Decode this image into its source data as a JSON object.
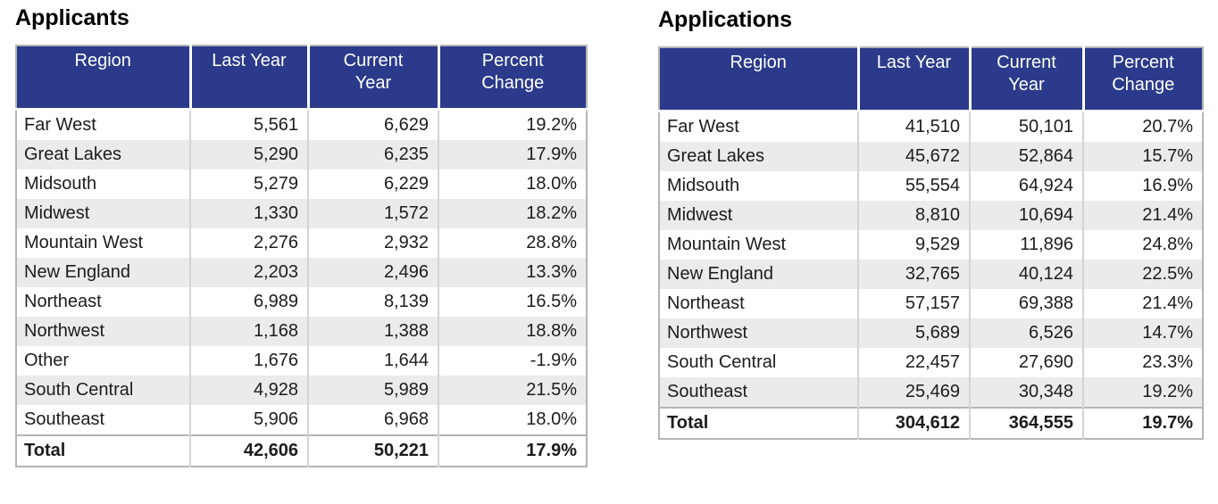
{
  "theme": {
    "header_bg": "#2b3a8a",
    "header_text": "#ffffff",
    "alt_row_bg": "#ebebeb",
    "outer_border": "#b5b5b5",
    "inner_border": "#d4d4d4",
    "body_text": "#1c1c1c"
  },
  "chart_data": [
    {
      "type": "table",
      "title": "Applicants",
      "columns": [
        "Region",
        "Last Year",
        "Current Year",
        "Percent Change"
      ],
      "rows": [
        [
          "Far West",
          "5,561",
          "6,629",
          "19.2%"
        ],
        [
          "Great Lakes",
          "5,290",
          "6,235",
          "17.9%"
        ],
        [
          "Midsouth",
          "5,279",
          "6,229",
          "18.0%"
        ],
        [
          "Midwest",
          "1,330",
          "1,572",
          "18.2%"
        ],
        [
          "Mountain West",
          "2,276",
          "2,932",
          "28.8%"
        ],
        [
          "New England",
          "2,203",
          "2,496",
          "13.3%"
        ],
        [
          "Northeast",
          "6,989",
          "8,139",
          "16.5%"
        ],
        [
          "Northwest",
          "1,168",
          "1,388",
          "18.8%"
        ],
        [
          "Other",
          "1,676",
          "1,644",
          "-1.9%"
        ],
        [
          "South Central",
          "4,928",
          "5,989",
          "21.5%"
        ],
        [
          "Southeast",
          "5,906",
          "6,968",
          "18.0%"
        ]
      ],
      "total_row": [
        "Total",
        "42,606",
        "50,221",
        "17.9%"
      ],
      "total_text_color": "#111111"
    },
    {
      "type": "table",
      "title": "Applications",
      "columns": [
        "Region",
        "Last Year",
        "Current Year",
        "Percent Change"
      ],
      "rows": [
        [
          "Far West",
          "41,510",
          "50,101",
          "20.7%"
        ],
        [
          "Great Lakes",
          "45,672",
          "52,864",
          "15.7%"
        ],
        [
          "Midsouth",
          "55,554",
          "64,924",
          "16.9%"
        ],
        [
          "Midwest",
          "8,810",
          "10,694",
          "21.4%"
        ],
        [
          "Mountain West",
          "9,529",
          "11,896",
          "24.8%"
        ],
        [
          "New England",
          "32,765",
          "40,124",
          "22.5%"
        ],
        [
          "Northeast",
          "57,157",
          "69,388",
          "21.4%"
        ],
        [
          "Northwest",
          "5,689",
          "6,526",
          "14.7%"
        ],
        [
          "South Central",
          "22,457",
          "27,690",
          "23.3%"
        ],
        [
          "Southeast",
          "25,469",
          "30,348",
          "19.2%"
        ]
      ],
      "total_row": [
        "Total",
        "304,612",
        "364,555",
        "19.7%"
      ],
      "total_text_color": "#595c60"
    }
  ]
}
